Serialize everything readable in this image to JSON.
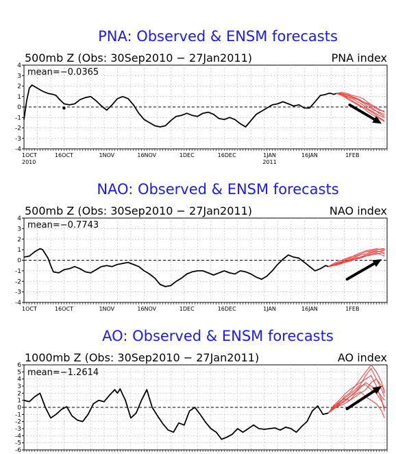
{
  "chart_data": [
    {
      "type": "line",
      "title": "PNA: Observed & ENSM forecasts",
      "subtitle": "500mb Z (Obs: 30Sep2010 − 27Jan2011)",
      "index_label": "PNA index",
      "mean_label": "mean=−0.0365",
      "ylim": [
        -4,
        4
      ],
      "yticks": [
        "4",
        "3",
        "2",
        "1",
        "0",
        "-1",
        "-2",
        "-3",
        "-4"
      ],
      "x_range_days": [
        0,
        136
      ],
      "xticks": [
        {
          "label": "1OCT",
          "day": 0
        },
        {
          "label": "16OCT",
          "day": 15
        },
        {
          "label": "1NOV",
          "day": 31
        },
        {
          "label": "16NOV",
          "day": 46
        },
        {
          "label": "1DEC",
          "day": 61
        },
        {
          "label": "16DEC",
          "day": 76
        },
        {
          "label": "1JAN",
          "day": 92
        },
        {
          "label": "16JAN",
          "day": 107
        },
        {
          "label": "1FEB",
          "day": 123
        }
      ],
      "xtick_years": [
        {
          "label": "2010",
          "day": 0
        },
        {
          "label": "2011",
          "day": 92
        }
      ],
      "grid": true,
      "observed_color": "#000000",
      "forecast_color": "#ff3333",
      "arrow_color": "#000000",
      "observed": {
        "x": [
          0,
          1,
          2,
          3,
          5,
          7,
          9,
          11,
          12,
          13,
          15,
          17,
          19,
          21,
          23,
          25,
          27,
          29,
          31,
          33,
          35,
          37,
          39,
          41,
          43,
          45,
          47,
          49,
          51,
          53,
          55,
          57,
          59,
          61,
          63,
          65,
          67,
          69,
          71,
          73,
          75,
          77,
          79,
          81,
          83,
          85,
          87,
          89,
          91,
          93,
          95,
          97,
          99,
          101,
          103,
          105,
          107,
          109,
          111,
          113,
          114,
          115,
          116,
          117
        ],
        "y": [
          -1.2,
          0.6,
          1.8,
          2.1,
          1.8,
          1.5,
          1.3,
          1.2,
          1.1,
          0.8,
          0.3,
          0.2,
          0.3,
          0.7,
          0.9,
          1.0,
          0.6,
          0.1,
          -0.3,
          0.2,
          0.8,
          1.0,
          0.8,
          0.2,
          -0.6,
          -1.2,
          -1.5,
          -1.8,
          -1.9,
          -1.8,
          -1.3,
          -0.9,
          -0.8,
          -0.6,
          -0.8,
          -0.9,
          -0.6,
          -0.5,
          -0.7,
          -1.1,
          -1.2,
          -1.0,
          -1.2,
          -1.6,
          -1.9,
          -1.3,
          -0.7,
          -0.4,
          -0.1,
          0.2,
          0.3,
          0.5,
          0.3,
          0.1,
          0.2,
          -0.1,
          -0.1,
          0.5,
          1.1,
          1.2,
          1.3,
          1.3,
          1.2,
          1.3
        ]
      },
      "forecasts": {
        "x": [
          117,
          119,
          121,
          123,
          125,
          127,
          129,
          131,
          133,
          135
        ],
        "members": [
          [
            1.3,
            1.2,
            1.0,
            0.8,
            0.5,
            0.2,
            -0.2,
            -0.5,
            -0.8,
            -1.0
          ],
          [
            1.3,
            1.3,
            1.1,
            1.0,
            0.8,
            0.5,
            0.2,
            -0.2,
            -0.6,
            -0.9
          ],
          [
            1.3,
            1.4,
            1.3,
            1.1,
            1.0,
            0.8,
            0.4,
            0.1,
            -0.2,
            -0.5
          ],
          [
            1.3,
            1.2,
            0.9,
            0.6,
            0.3,
            0.0,
            -0.3,
            -0.6,
            -1.0,
            -1.3
          ],
          [
            1.3,
            1.1,
            0.8,
            0.5,
            0.2,
            -0.1,
            -0.5,
            -0.8,
            -1.1,
            -1.4
          ],
          [
            1.3,
            1.3,
            1.2,
            1.0,
            0.7,
            0.4,
            0.0,
            -0.3,
            -0.5,
            -0.7
          ],
          [
            1.3,
            1.2,
            1.0,
            0.9,
            0.7,
            0.5,
            0.3,
            0.0,
            -0.3,
            -0.4
          ]
        ]
      },
      "arrow": {
        "from": [
          122,
          0.2
        ],
        "to": [
          134,
          -1.6
        ]
      },
      "dot": [
        15,
        -0.1
      ]
    },
    {
      "type": "line",
      "title": "NAO: Observed & ENSM forecasts",
      "subtitle": "500mb Z (Obs: 30Sep2010 − 27Jan2011)",
      "index_label": "NAO index",
      "mean_label": "mean=−0.7743",
      "ylim": [
        -4,
        4
      ],
      "yticks": [
        "4",
        "3",
        "2",
        "1",
        "0",
        "-1",
        "-2",
        "-3",
        "-4"
      ],
      "x_range_days": [
        0,
        136
      ],
      "xticks": [
        {
          "label": "1OCT",
          "day": 0
        },
        {
          "label": "16OCT",
          "day": 15
        },
        {
          "label": "1NOV",
          "day": 31
        },
        {
          "label": "16NOV",
          "day": 46
        },
        {
          "label": "1DEC",
          "day": 61
        },
        {
          "label": "16DEC",
          "day": 76
        },
        {
          "label": "1JAN",
          "day": 92
        },
        {
          "label": "16JAN",
          "day": 107
        },
        {
          "label": "1FEB",
          "day": 123
        }
      ],
      "grid": true,
      "observed_color": "#000000",
      "forecast_color": "#ff3333",
      "arrow_color": "#000000",
      "observed": {
        "x": [
          0,
          2,
          4,
          6,
          7,
          9,
          10,
          11,
          13,
          15,
          17,
          19,
          21,
          23,
          25,
          27,
          29,
          31,
          33,
          35,
          37,
          39,
          41,
          43,
          45,
          47,
          49,
          51,
          53,
          55,
          57,
          59,
          61,
          63,
          65,
          67,
          69,
          71,
          73,
          75,
          77,
          79,
          81,
          83,
          85,
          87,
          89,
          91,
          93,
          95,
          97,
          99,
          101,
          103,
          105,
          107,
          109,
          111,
          113,
          114
        ],
        "y": [
          0.3,
          0.4,
          0.8,
          1.1,
          1.0,
          0.2,
          -0.5,
          -1.1,
          -1.2,
          -0.9,
          -0.8,
          -0.6,
          -0.8,
          -1.1,
          -1.2,
          -0.9,
          -0.6,
          -0.5,
          -0.6,
          -0.4,
          -0.3,
          -0.2,
          -0.4,
          -0.6,
          -1.0,
          -1.3,
          -1.7,
          -2.3,
          -2.5,
          -2.4,
          -2.0,
          -1.7,
          -1.3,
          -1.1,
          -1.0,
          -1.0,
          -1.2,
          -1.4,
          -1.2,
          -1.0,
          -1.2,
          -1.3,
          -1.0,
          -1.1,
          -1.3,
          -1.6,
          -1.8,
          -1.5,
          -1.0,
          -0.4,
          0.1,
          0.5,
          0.3,
          0.2,
          -0.2,
          -0.6,
          -1.0,
          -0.8,
          -0.5,
          -0.6
        ]
      },
      "forecasts": {
        "x": [
          114,
          116,
          118,
          120,
          122,
          124,
          126,
          128,
          130,
          132,
          134,
          135
        ],
        "members": [
          [
            -0.6,
            -0.4,
            -0.2,
            -0.1,
            0.1,
            0.3,
            0.5,
            0.6,
            0.8,
            0.9,
            0.8,
            0.7
          ],
          [
            -0.6,
            -0.5,
            -0.3,
            -0.1,
            0.0,
            0.2,
            0.3,
            0.5,
            0.7,
            0.8,
            0.9,
            1.0
          ],
          [
            -0.6,
            -0.4,
            -0.3,
            0.0,
            0.2,
            0.5,
            0.7,
            0.9,
            1.0,
            1.1,
            1.0,
            0.9
          ],
          [
            -0.6,
            -0.5,
            -0.4,
            -0.2,
            -0.1,
            0.1,
            0.2,
            0.4,
            0.5,
            0.6,
            0.7,
            0.6
          ],
          [
            -0.6,
            -0.3,
            -0.1,
            0.1,
            0.3,
            0.4,
            0.6,
            0.8,
            0.9,
            1.0,
            1.1,
            1.1
          ],
          [
            -0.6,
            -0.5,
            -0.3,
            -0.2,
            0.0,
            0.1,
            0.3,
            0.4,
            0.6,
            0.7,
            0.5,
            0.4
          ]
        ]
      },
      "arrow": {
        "from": [
          121,
          -1.8
        ],
        "to": [
          134,
          0.1
        ]
      }
    },
    {
      "type": "line",
      "title": "AO: Observed & ENSM forecasts",
      "subtitle": "1000mb Z (Obs: 30Sep2010 − 27Jan2011)",
      "index_label": "AO index",
      "mean_label": "mean=−1.2614",
      "ylim": [
        -6,
        6
      ],
      "yticks": [
        "6",
        "5",
        "4",
        "3",
        "2",
        "1",
        "0",
        "-1",
        "-2",
        "-3",
        "-4",
        "-5",
        "-6"
      ],
      "x_range_days": [
        0,
        136
      ],
      "xticks": [],
      "grid": true,
      "observed_color": "#000000",
      "forecast_color": "#ff3333",
      "arrow_color": "#000000",
      "observed": {
        "x": [
          0,
          2,
          4,
          6,
          8,
          10,
          12,
          14,
          16,
          18,
          20,
          22,
          24,
          26,
          28,
          30,
          32,
          34,
          35,
          36,
          38,
          40,
          42,
          44,
          46,
          48,
          50,
          52,
          54,
          56,
          58,
          60,
          62,
          64,
          66,
          68,
          70,
          72,
          74,
          76,
          78,
          80,
          82,
          84,
          86,
          88,
          90,
          92,
          94,
          96,
          98,
          100,
          102,
          104,
          106,
          108,
          110,
          112,
          114
        ],
        "y": [
          1.0,
          0.8,
          1.5,
          2.0,
          0.0,
          -1.5,
          -1.0,
          -0.3,
          0.1,
          -1.2,
          -1.8,
          -2.0,
          -1.0,
          0.5,
          1.0,
          0.8,
          1.7,
          2.5,
          2.0,
          2.6,
          1.0,
          -1.5,
          -0.8,
          1.0,
          2.5,
          0.0,
          -1.2,
          -2.3,
          -3.2,
          -3.5,
          -2.2,
          -2.5,
          -0.5,
          0.0,
          -1.0,
          -2.1,
          -3.0,
          -3.5,
          -4.5,
          -4.2,
          -3.8,
          -3.0,
          -3.5,
          -3.0,
          -2.5,
          -3.0,
          -3.1,
          -3.0,
          -2.9,
          -3.2,
          -2.8,
          -3.0,
          -3.5,
          -2.7,
          -2.0,
          -0.5,
          0.2,
          -1.0,
          -0.8
        ]
      },
      "forecasts": {
        "x": [
          114,
          116,
          118,
          120,
          122,
          124,
          126,
          128,
          130,
          132,
          134,
          135
        ],
        "members": [
          [
            -0.8,
            0.0,
            0.5,
            1.5,
            2.0,
            3.0,
            4.0,
            5.0,
            6.0,
            5.0,
            3.5,
            2.0
          ],
          [
            -0.8,
            -0.2,
            0.3,
            1.0,
            1.5,
            2.0,
            2.8,
            3.5,
            3.0,
            2.5,
            1.5,
            1.0
          ],
          [
            -0.8,
            0.3,
            1.0,
            1.8,
            2.5,
            3.0,
            3.5,
            4.0,
            4.5,
            3.0,
            1.0,
            -0.5
          ],
          [
            -0.8,
            0.1,
            0.8,
            1.2,
            1.0,
            1.5,
            2.0,
            2.5,
            3.5,
            4.0,
            3.0,
            2.5
          ],
          [
            -0.8,
            -0.1,
            0.2,
            0.5,
            1.0,
            1.8,
            2.2,
            1.5,
            1.0,
            0.5,
            -0.5,
            -1.5
          ],
          [
            -0.8,
            0.2,
            0.6,
            1.3,
            1.8,
            2.5,
            3.2,
            4.5,
            5.5,
            4.0,
            2.5,
            1.5
          ],
          [
            -0.8,
            0.0,
            0.4,
            0.8,
            1.5,
            2.2,
            3.0,
            3.2,
            2.5,
            2.0,
            0.8,
            0.0
          ]
        ]
      },
      "arrow": {
        "from": [
          121,
          -0.2
        ],
        "to": [
          134,
          3.0
        ]
      }
    }
  ]
}
